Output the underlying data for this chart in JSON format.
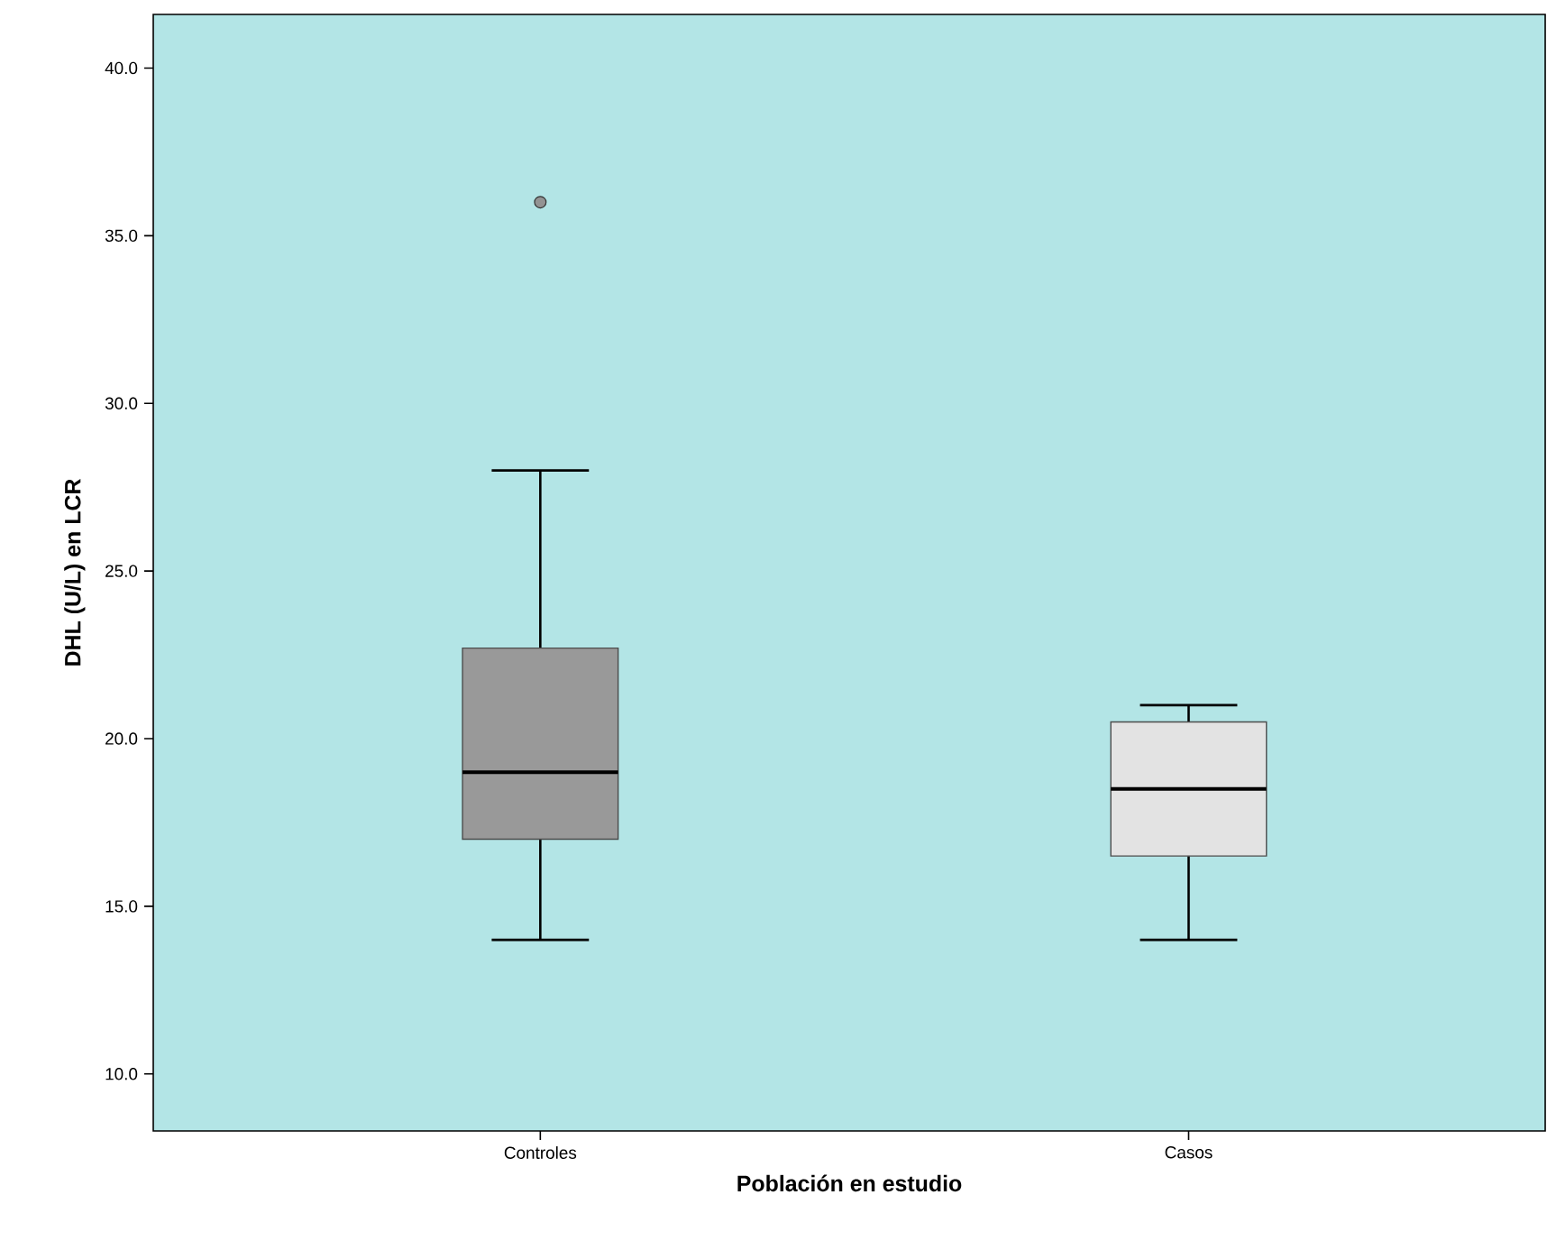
{
  "chart_data": {
    "type": "box",
    "xlabel": "Población en estudio",
    "ylabel": "DHL (U/L) en LCR",
    "categories": [
      "Controles",
      "Casos"
    ],
    "boxes": [
      {
        "low": 14.0,
        "q1": 17.0,
        "median": 19.0,
        "q3": 22.7,
        "high": 28.0,
        "outliers": [
          36.0
        ]
      },
      {
        "low": 14.0,
        "q1": 16.5,
        "median": 18.5,
        "q3": 20.5,
        "high": 21.0
      }
    ],
    "colors": [
      "#999999",
      "#e3e3e3"
    ],
    "ylim": [
      8.3,
      41.6
    ],
    "yticks": [
      {
        "value": 10,
        "label": "10.0"
      },
      {
        "value": 15,
        "label": "15.0"
      },
      {
        "value": 20,
        "label": "20.0"
      },
      {
        "value": 25,
        "label": "25.0"
      },
      {
        "value": 30,
        "label": "30.0"
      },
      {
        "value": 35,
        "label": "35.0"
      },
      {
        "value": 40,
        "label": "40.0"
      }
    ],
    "grid": false
  }
}
